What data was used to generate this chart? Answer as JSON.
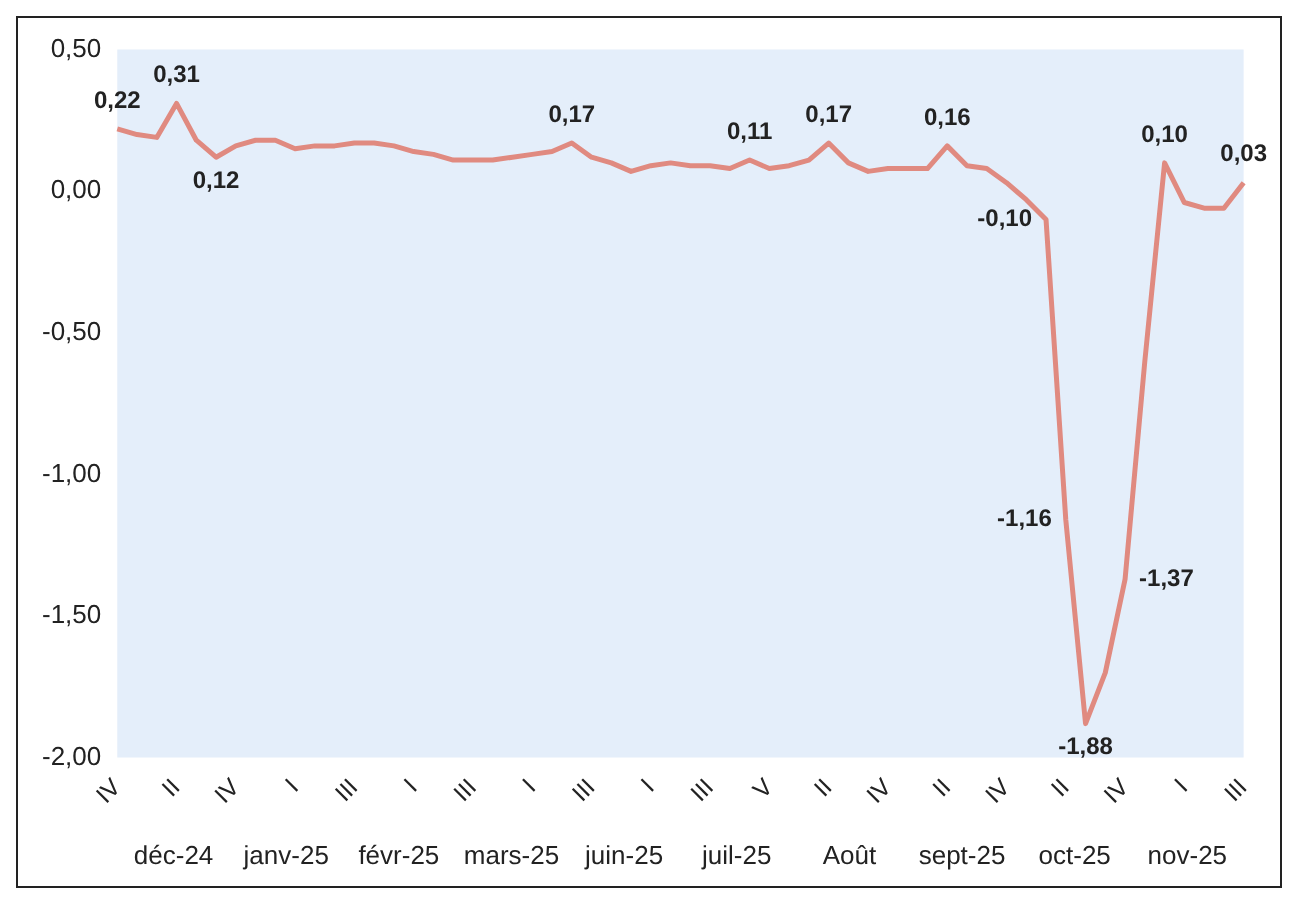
{
  "chart_data": {
    "type": "line",
    "categories": [
      "IV",
      null,
      null,
      "II",
      null,
      null,
      "IV",
      null,
      null,
      "I",
      null,
      null,
      "III",
      null,
      null,
      "I",
      null,
      null,
      "III",
      null,
      null,
      "I",
      null,
      null,
      "III",
      null,
      null,
      "I",
      null,
      null,
      "III",
      null,
      null,
      "V",
      null,
      null,
      "II",
      null,
      null,
      "IV",
      null,
      null,
      "II",
      null,
      null,
      "IV",
      null,
      null,
      "II",
      null,
      null,
      "IV",
      null,
      null,
      "I",
      null,
      null,
      "III"
    ],
    "series": [
      {
        "color": "#e08a80",
        "values": [
          0.22,
          0.2,
          0.19,
          0.31,
          0.18,
          0.12,
          0.16,
          0.18,
          0.18,
          0.15,
          0.16,
          0.16,
          0.17,
          0.17,
          0.16,
          0.14,
          0.13,
          0.11,
          0.11,
          0.11,
          0.12,
          0.13,
          0.14,
          0.17,
          0.12,
          0.1,
          0.07,
          0.09,
          0.1,
          0.09,
          0.09,
          0.08,
          0.11,
          0.08,
          0.09,
          0.11,
          0.17,
          0.1,
          0.07,
          0.08,
          0.08,
          0.08,
          0.16,
          0.09,
          0.08,
          0.03,
          -0.03,
          -0.1,
          -1.16,
          -1.88,
          -1.7,
          -1.37,
          -0.6,
          0.1,
          -0.04,
          -0.06,
          -0.06,
          0.03
        ],
        "value_labels": [
          "0,22",
          null,
          null,
          "0,31",
          null,
          "0,12",
          null,
          null,
          null,
          null,
          null,
          null,
          null,
          null,
          null,
          null,
          null,
          null,
          null,
          null,
          null,
          null,
          null,
          "0,17",
          null,
          null,
          null,
          null,
          null,
          null,
          null,
          null,
          "0,11",
          null,
          null,
          null,
          "0,17",
          null,
          null,
          null,
          null,
          null,
          "0,16",
          null,
          null,
          null,
          null,
          "-0,10",
          "-1,16",
          "-1,88",
          null,
          "-1,37",
          null,
          "0,10",
          null,
          null,
          null,
          "0,03"
        ]
      }
    ],
    "ylim": [
      -2,
      0.5
    ],
    "yticks": [
      {
        "value": -2,
        "label": "-2,00"
      },
      {
        "value": -1.5,
        "label": "-1,50"
      },
      {
        "value": -1,
        "label": "-1,00"
      },
      {
        "value": -0.5,
        "label": "-0,50"
      },
      {
        "value": 0,
        "label": "0,00"
      },
      {
        "value": 0.5,
        "label": "0,50"
      }
    ],
    "annotations": [
      "déc-24",
      "janv-25",
      "févr-25",
      "mars-25",
      "juin-25",
      "juil-25",
      "Août",
      "sept-25",
      "oct-25",
      "nov-25"
    ],
    "grid": false,
    "legend": false,
    "marker": "none",
    "line_style": "solid"
  }
}
